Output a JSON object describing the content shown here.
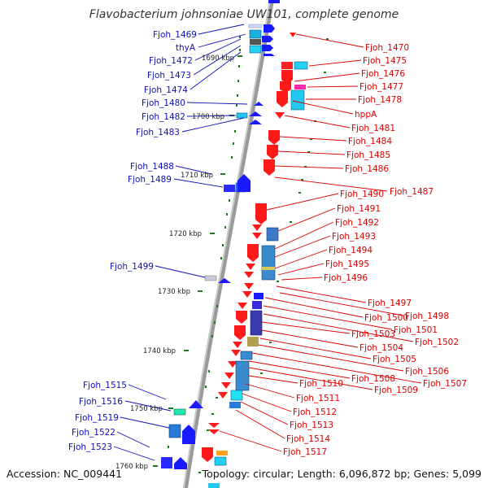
{
  "title": "Flavobacterium johnsoniae UW101, complete genome",
  "accession": "Accession: NC_009441",
  "topology": "Topology: circular; Length: 6,096,872 bp; Genes: 5,099",
  "colors": {
    "left_label": "#1010b8",
    "right_label": "#d80000",
    "forward_gene": "#1a1aff",
    "reverse_gene": "#ff1a1a",
    "backbone": "#8a8a8a",
    "tick": "#1a7a1a"
  },
  "scale_ticks": [
    "1690 kbp",
    "1700 kbp",
    "1710 kbp",
    "1720 kbp",
    "1730 kbp",
    "1740 kbp",
    "1750 kbp",
    "1760 kbp"
  ],
  "left_labels": [
    "Fjoh_1469",
    "thyA",
    "Fjoh_1472",
    "Fjoh_1473",
    "Fjoh_1474",
    "Fjoh_1480",
    "Fjoh_1482",
    "Fjoh_1483",
    "Fjoh_1488",
    "Fjoh_1489",
    "Fjoh_1499",
    "Fjoh_1515",
    "Fjoh_1516",
    "Fjoh_1519",
    "Fjoh_1522",
    "Fjoh_1523"
  ],
  "right_labels": [
    "Fjoh_1470",
    "Fjoh_1475",
    "Fjoh_1476",
    "Fjoh_1477",
    "Fjoh_1478",
    "hppA",
    "Fjoh_1481",
    "Fjoh_1484",
    "Fjoh_1485",
    "Fjoh_1486",
    "Fjoh_1487",
    "Fjoh_1490",
    "Fjoh_1491",
    "Fjoh_1492",
    "Fjoh_1493",
    "Fjoh_1494",
    "Fjoh_1495",
    "Fjoh_1496",
    "Fjoh_1497",
    "Fjoh_1498",
    "Fjoh_1500",
    "Fjoh_1501",
    "Fjoh_1502",
    "Fjoh_1503",
    "Fjoh_1504",
    "Fjoh_1505",
    "Fjoh_1506",
    "Fjoh_1507",
    "Fjoh_1508",
    "Fjoh_1509",
    "Fjoh_1510",
    "Fjoh_1511",
    "Fjoh_1512",
    "Fjoh_1513",
    "Fjoh_1514",
    "Fjoh_1517"
  ]
}
